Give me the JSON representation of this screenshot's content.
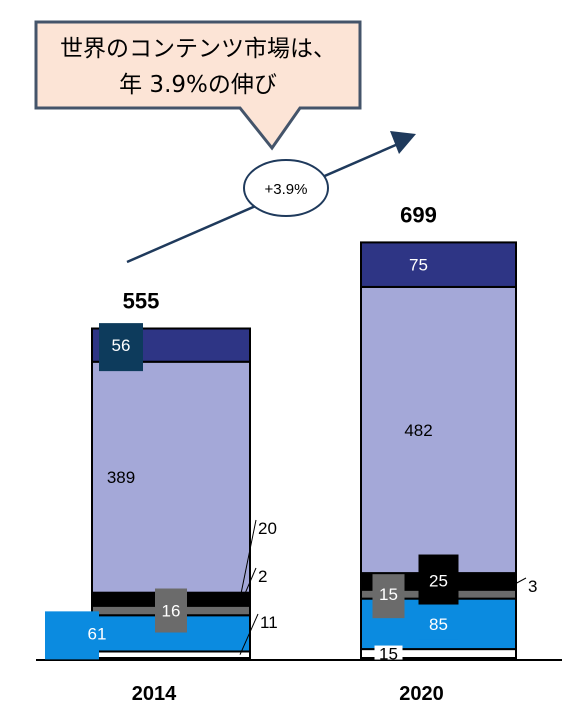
{
  "chart_data": {
    "type": "bar",
    "stacked": true,
    "categories": [
      "2014",
      "2020"
    ],
    "totals": [
      555,
      699
    ],
    "series": [
      {
        "values": [
          11,
          15
        ],
        "color": "#ffffff"
      },
      {
        "values": [
          61,
          85
        ],
        "color": "#0b8be0"
      },
      {
        "values": [
          16,
          15
        ],
        "color": "#6b6b6b"
      },
      {
        "values": [
          2,
          3
        ],
        "color": "#8b9a55"
      },
      {
        "values": [
          20,
          25
        ],
        "color": "#000000"
      },
      {
        "values": [
          389,
          482
        ],
        "color": "#a4a8d8"
      },
      {
        "values": [
          56,
          75
        ],
        "color": "#2e3585"
      }
    ],
    "callout": {
      "line1": "世界のコンテンツ市場は、",
      "line2": "年 3.9%の伸び"
    },
    "growth_label": "+3.9%",
    "grid": false
  }
}
